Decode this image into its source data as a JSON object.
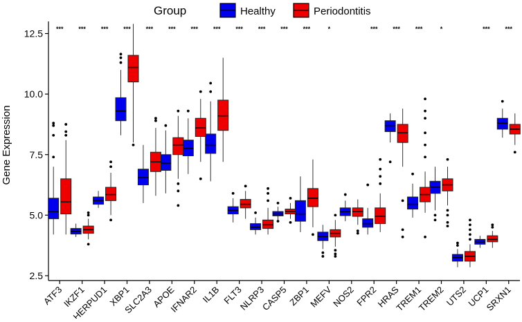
{
  "chart_data": {
    "type": "boxplot",
    "title": "",
    "xlabel": "",
    "ylabel": "Gene Expression",
    "ylim": [
      2.3,
      13.0
    ],
    "yticks": [
      2.5,
      5.0,
      7.5,
      10.0,
      12.5
    ],
    "ytick_labels": [
      "2.5",
      "5.0",
      "7.5",
      "10.0",
      "12.5"
    ],
    "legend": {
      "title": "Group",
      "position": "top",
      "entries": [
        {
          "name": "Healthy",
          "color": "#0000ee"
        },
        {
          "name": "Periodontitis",
          "color": "#ee0000"
        }
      ]
    },
    "categories": [
      "ATF3",
      "IKZF1",
      "HERPUD1",
      "XBP1",
      "SLC2A3",
      "APOE",
      "IFNAR2",
      "IL1B",
      "FLT3",
      "NLRP3",
      "CASP5",
      "ZBP1",
      "MEFV",
      "NOS2",
      "FPR2",
      "HRAS",
      "TREM1",
      "TREM2",
      "UTS2",
      "UCP1",
      "SRXN1"
    ],
    "significance": [
      "***",
      "***",
      "***",
      "***",
      "***",
      "***",
      "***",
      "***",
      "***",
      "***",
      "***",
      "***",
      "*",
      "",
      "***",
      "***",
      "***",
      "*",
      "",
      "***",
      "***"
    ],
    "series": [
      {
        "name": "Healthy",
        "color": "#0000ee",
        "boxes": [
          {
            "min": 4.2,
            "q1": 4.85,
            "median": 5.15,
            "q3": 5.7,
            "max": 7.0,
            "outliers": [
              7.4,
              8.3,
              8.7,
              8.8
            ]
          },
          {
            "min": 4.1,
            "q1": 4.22,
            "median": 4.33,
            "q3": 4.45,
            "max": 4.65,
            "outliers": []
          },
          {
            "min": 5.3,
            "q1": 5.45,
            "median": 5.6,
            "q3": 5.75,
            "max": 6.0,
            "outliers": []
          },
          {
            "min": 8.3,
            "q1": 8.9,
            "median": 9.3,
            "q3": 9.85,
            "max": 11.0,
            "outliers": [
              11.3,
              11.5,
              11.65
            ]
          },
          {
            "min": 5.5,
            "q1": 6.25,
            "median": 6.55,
            "q3": 6.9,
            "max": 7.9,
            "outliers": []
          },
          {
            "min": 5.9,
            "q1": 6.85,
            "median": 7.15,
            "q3": 7.5,
            "max": 8.5,
            "outliers": [
              8.7
            ]
          },
          {
            "min": 6.7,
            "q1": 7.45,
            "median": 7.75,
            "q3": 8.1,
            "max": 9.0,
            "outliers": [
              9.3
            ]
          },
          {
            "min": 6.4,
            "q1": 7.55,
            "median": 7.9,
            "q3": 8.35,
            "max": 9.7,
            "outliers": [
              10.1,
              10.45
            ]
          },
          {
            "min": 4.7,
            "q1": 5.05,
            "median": 5.2,
            "q3": 5.35,
            "max": 5.7,
            "outliers": [
              5.9
            ]
          },
          {
            "min": 4.2,
            "q1": 4.4,
            "median": 4.5,
            "q3": 4.65,
            "max": 4.9,
            "outliers": [
              5.1
            ]
          },
          {
            "min": 4.8,
            "q1": 4.97,
            "median": 5.05,
            "q3": 5.15,
            "max": 5.35,
            "outliers": [
              4.75,
              5.5
            ]
          },
          {
            "min": 4.3,
            "q1": 4.75,
            "median": 5.05,
            "q3": 5.6,
            "max": 6.6,
            "outliers": []
          },
          {
            "min": 3.6,
            "q1": 3.95,
            "median": 4.12,
            "q3": 4.3,
            "max": 4.6,
            "outliers": [
              3.45,
              3.3
            ]
          },
          {
            "min": 4.75,
            "q1": 4.98,
            "median": 5.15,
            "q3": 5.3,
            "max": 5.6,
            "outliers": [
              5.85
            ]
          },
          {
            "min": 4.2,
            "q1": 4.5,
            "median": 4.65,
            "q3": 4.85,
            "max": 5.3,
            "outliers": [
              6.25
            ]
          },
          {
            "min": 8.0,
            "q1": 8.45,
            "median": 8.7,
            "q3": 8.9,
            "max": 9.2,
            "outliers": [
              7.2
            ]
          },
          {
            "min": 4.9,
            "q1": 5.25,
            "median": 5.45,
            "q3": 5.75,
            "max": 6.3,
            "outliers": [
              6.7
            ]
          },
          {
            "min": 5.2,
            "q1": 5.9,
            "median": 6.15,
            "q3": 6.4,
            "max": 7.0,
            "outliers": [
              5.0,
              4.8
            ]
          },
          {
            "min": 2.85,
            "q1": 3.1,
            "median": 3.25,
            "q3": 3.38,
            "max": 3.6,
            "outliers": [
              3.75,
              3.85
            ]
          },
          {
            "min": 3.65,
            "q1": 3.8,
            "median": 3.9,
            "q3": 4.0,
            "max": 4.15,
            "outliers": []
          },
          {
            "min": 8.2,
            "q1": 8.55,
            "median": 8.8,
            "q3": 9.0,
            "max": 9.4,
            "outliers": [
              9.7
            ]
          }
        ]
      },
      {
        "name": "Periodontitis",
        "color": "#ee0000",
        "boxes": [
          {
            "min": 4.2,
            "q1": 5.05,
            "median": 5.55,
            "q3": 6.5,
            "max": 8.1,
            "outliers": [
              8.3,
              8.45,
              8.75
            ]
          },
          {
            "min": 4.0,
            "q1": 4.25,
            "median": 4.4,
            "q3": 4.55,
            "max": 4.85,
            "outliers": [
              3.8,
              5.0,
              5.1
            ]
          },
          {
            "min": 5.0,
            "q1": 5.6,
            "median": 5.85,
            "q3": 6.15,
            "max": 6.75,
            "outliers": [
              4.8,
              7.0,
              7.2
            ]
          },
          {
            "min": 8.0,
            "q1": 10.5,
            "median": 11.1,
            "q3": 11.6,
            "max": 12.9,
            "outliers": [
              7.9
            ]
          },
          {
            "min": 5.8,
            "q1": 6.8,
            "median": 7.2,
            "q3": 7.6,
            "max": 8.6,
            "outliers": [
              8.9,
              9.0
            ]
          },
          {
            "min": 6.5,
            "q1": 7.5,
            "median": 7.9,
            "q3": 8.2,
            "max": 9.1,
            "outliers": [
              6.3,
              6.0,
              5.4,
              9.3
            ]
          },
          {
            "min": 7.2,
            "q1": 8.25,
            "median": 8.6,
            "q3": 9.0,
            "max": 9.8,
            "outliers": [
              6.5,
              10.1
            ]
          },
          {
            "min": 7.2,
            "q1": 8.5,
            "median": 9.1,
            "q3": 9.75,
            "max": 11.5,
            "outliers": []
          },
          {
            "min": 4.85,
            "q1": 5.3,
            "median": 5.45,
            "q3": 5.65,
            "max": 6.0,
            "outliers": [
              6.2
            ]
          },
          {
            "min": 4.2,
            "q1": 4.45,
            "median": 4.6,
            "q3": 4.8,
            "max": 5.3,
            "outliers": [
              5.6,
              5.9,
              6.1
            ]
          },
          {
            "min": 4.85,
            "q1": 5.05,
            "median": 5.15,
            "q3": 5.25,
            "max": 5.5,
            "outliers": [
              5.7,
              4.7
            ]
          },
          {
            "min": 4.5,
            "q1": 5.35,
            "median": 5.7,
            "q3": 6.1,
            "max": 7.3,
            "outliers": [
              4.2
            ]
          },
          {
            "min": 3.7,
            "q1": 4.1,
            "median": 4.25,
            "q3": 4.4,
            "max": 4.8,
            "outliers": [
              3.55,
              3.4,
              3.3,
              5.0
            ]
          },
          {
            "min": 4.6,
            "q1": 4.95,
            "median": 5.15,
            "q3": 5.3,
            "max": 5.65,
            "outliers": [
              4.35,
              4.25
            ]
          },
          {
            "min": 4.3,
            "q1": 4.65,
            "median": 4.95,
            "q3": 5.3,
            "max": 5.9,
            "outliers": [
              6.3,
              6.6,
              6.9,
              7.3
            ]
          },
          {
            "min": 7.0,
            "q1": 8.0,
            "median": 8.4,
            "q3": 8.75,
            "max": 9.4,
            "outliers": [
              5.6,
              4.4,
              4.1
            ]
          },
          {
            "min": 5.1,
            "q1": 5.55,
            "median": 5.85,
            "q3": 6.15,
            "max": 6.8,
            "outliers": [
              7.4,
              7.9,
              8.4,
              9.0,
              9.3,
              9.8,
              4.1
            ]
          },
          {
            "min": 5.4,
            "q1": 6.0,
            "median": 6.25,
            "q3": 6.5,
            "max": 7.0,
            "outliers": [
              5.2,
              5.0,
              4.7,
              4.55,
              7.3
            ]
          },
          {
            "min": 2.85,
            "q1": 3.1,
            "median": 3.3,
            "q3": 3.5,
            "max": 3.8,
            "outliers": [
              4.0,
              4.2,
              4.4,
              4.6,
              4.8
            ]
          },
          {
            "min": 3.65,
            "q1": 3.9,
            "median": 4.0,
            "q3": 4.15,
            "max": 4.35,
            "outliers": [
              4.5,
              4.6
            ]
          },
          {
            "min": 7.9,
            "q1": 8.35,
            "median": 8.55,
            "q3": 8.75,
            "max": 9.2,
            "outliers": [
              7.6
            ]
          }
        ]
      }
    ]
  }
}
